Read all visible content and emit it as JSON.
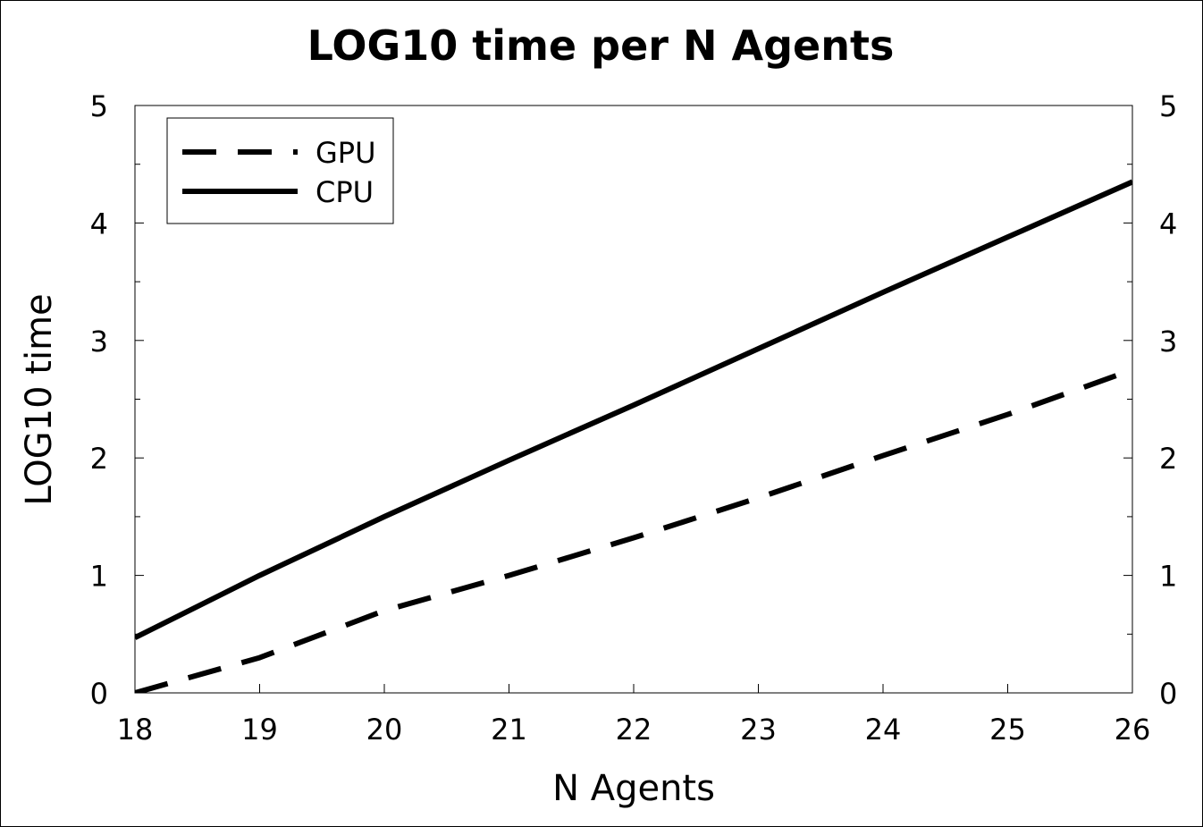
{
  "chart_data": {
    "type": "line",
    "title": "LOG10 time per N Agents",
    "xlabel": "N Agents",
    "ylabel": "LOG10 time",
    "xlim": [
      18,
      26
    ],
    "ylim": [
      0,
      5
    ],
    "x_ticks": [
      18,
      19,
      20,
      21,
      22,
      23,
      24,
      25,
      26
    ],
    "y_ticks": [
      0,
      1,
      2,
      3,
      4,
      5
    ],
    "y_minor_ticks": [
      0.5,
      1.5,
      2.5,
      3.5,
      4.5
    ],
    "right_axis_ticks": true,
    "grid": false,
    "legend_position": "top-left",
    "x": [
      18,
      19,
      20,
      21,
      22,
      23,
      24,
      25,
      26
    ],
    "series": [
      {
        "name": "GPU",
        "style": "dashed",
        "color": "#000000",
        "values": [
          0.0,
          0.3,
          0.7,
          1.0,
          1.32,
          1.66,
          2.02,
          2.37,
          2.75
        ]
      },
      {
        "name": "CPU",
        "style": "solid",
        "color": "#000000",
        "values": [
          0.47,
          1.0,
          1.5,
          1.98,
          2.45,
          2.93,
          3.41,
          3.88,
          4.35
        ]
      }
    ]
  }
}
